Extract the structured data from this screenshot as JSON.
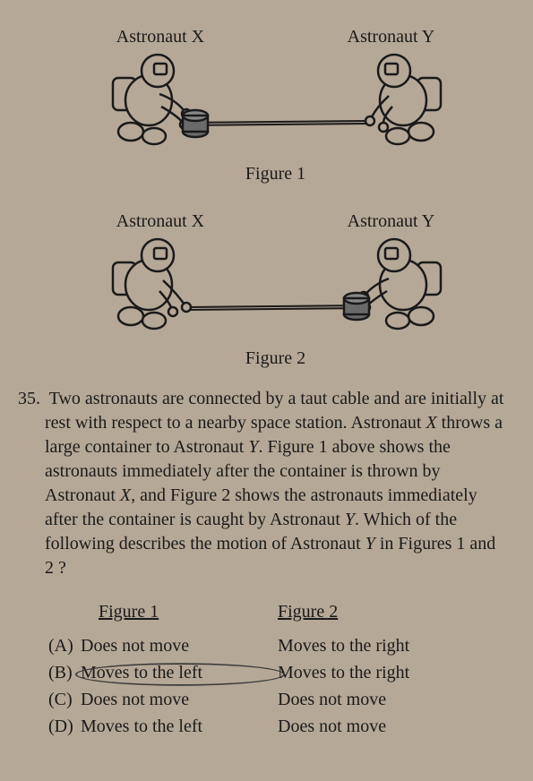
{
  "figure1": {
    "label_left": "Astronaut X",
    "label_right": "Astronaut Y",
    "caption": "Figure 1",
    "astronaut_stroke": "#1a1a1a",
    "astronaut_fill": "#b5a896",
    "container_fill": "#6a6a6a",
    "cable_stroke": "#1a1a1a"
  },
  "figure2": {
    "label_left": "Astronaut X",
    "label_right": "Astronaut Y",
    "caption": "Figure 2",
    "astronaut_stroke": "#1a1a1a",
    "astronaut_fill": "#b5a896",
    "container_fill": "#6a6a6a",
    "cable_stroke": "#1a1a1a"
  },
  "question": {
    "number": "35.",
    "text_parts": [
      "Two astronauts are connected by a taut cable and are initially at rest with respect to a nearby space station. Astronaut ",
      "X",
      " throws a large container to Astronaut ",
      "Y",
      ". Figure 1 above shows the astronauts immediately after the container is thrown by Astronaut ",
      "X",
      ", and Figure 2 shows the astronauts immediately after the container is caught by Astronaut ",
      "Y",
      ". Which of the following describes the motion of Astronaut ",
      "Y",
      " in Figures 1 and 2 ?"
    ]
  },
  "answers": {
    "header_col1": "Figure 1",
    "header_col2": "Figure 2",
    "options": [
      {
        "letter": "(A)",
        "col1": "Does not move",
        "col2": "Moves to the right",
        "circled": false
      },
      {
        "letter": "(B)",
        "col1": "Moves to the left",
        "col2": "Moves to the right",
        "circled": true
      },
      {
        "letter": "(C)",
        "col1": "Does not move",
        "col2": "Does not move",
        "circled": false
      },
      {
        "letter": "(D)",
        "col1": "Moves to the left",
        "col2": "Does not move",
        "circled": false
      }
    ]
  }
}
